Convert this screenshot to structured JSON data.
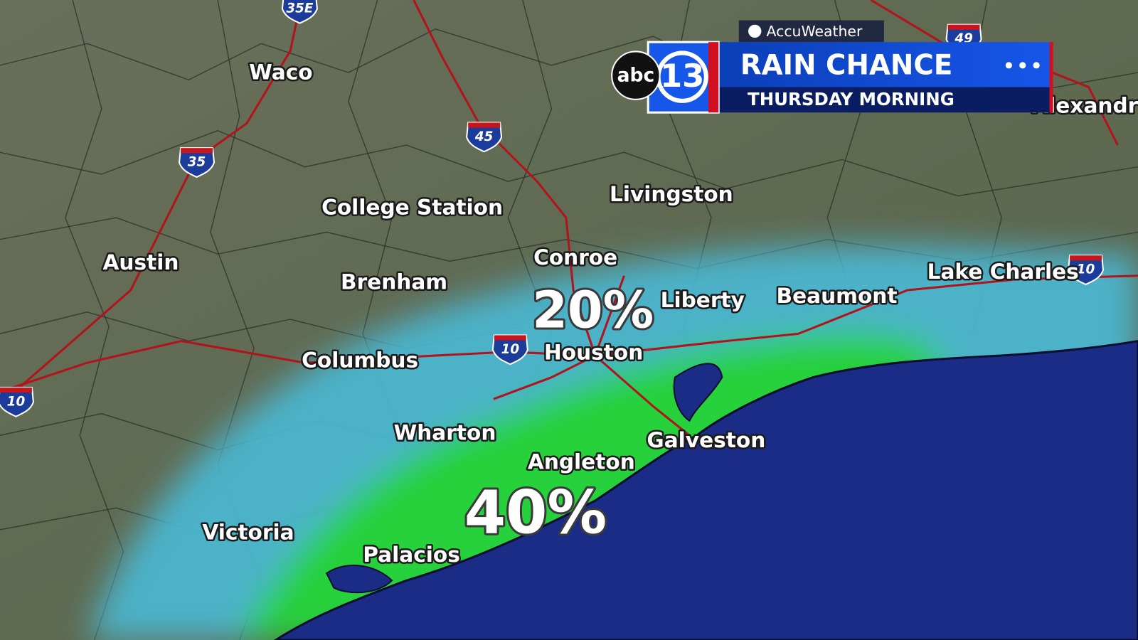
{
  "brand": {
    "weather_provider": "AccuWeather",
    "network": "abc",
    "channel": "13"
  },
  "header": {
    "title": "RAIN CHANCE",
    "subtitle": "THURSDAY MORNING"
  },
  "cities": [
    "Waco",
    "College Station",
    "Livingston",
    "Austin",
    "Conroe",
    "Brenham",
    "Liberty",
    "Beaumont",
    "Lake Charles",
    "Columbus",
    "Houston",
    "Wharton",
    "Galveston",
    "Angleton",
    "Victoria",
    "Palacios",
    "Alexandria"
  ],
  "highways": [
    "35E",
    "35",
    "45",
    "10",
    "10",
    "10",
    "49"
  ],
  "rain_zones": [
    {
      "label": "20%"
    },
    {
      "label": "40%"
    }
  ]
}
